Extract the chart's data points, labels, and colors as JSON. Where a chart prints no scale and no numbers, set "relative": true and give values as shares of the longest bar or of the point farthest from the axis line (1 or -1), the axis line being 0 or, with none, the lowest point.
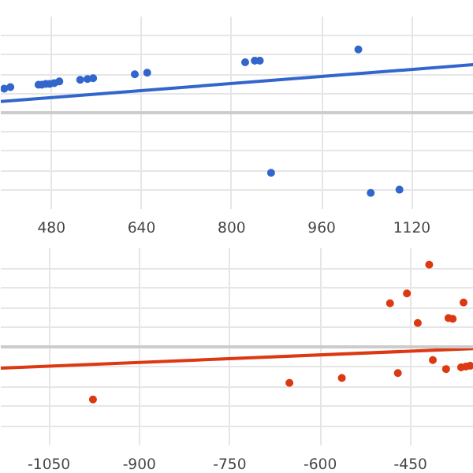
{
  "chart_data": [
    {
      "type": "scatter",
      "relative": true,
      "grid": true,
      "xlim": [
        390,
        1230
      ],
      "xticks": [
        480,
        640,
        800,
        960,
        1120
      ],
      "series": [
        {
          "color": "#3366cc",
          "marker": "circle",
          "x": [
            396,
            407,
            457,
            463,
            470,
            477,
            485,
            494,
            531,
            544,
            554,
            628,
            650,
            824,
            841,
            850,
            870,
            1025,
            1047,
            1098
          ],
          "values": [
            0.3,
            0.32,
            0.35,
            0.35,
            0.36,
            0.36,
            0.37,
            0.39,
            0.41,
            0.42,
            0.43,
            0.48,
            0.5,
            0.63,
            0.65,
            0.65,
            -0.75,
            0.79,
            -1,
            -0.96
          ]
        },
        {
          "type": "line",
          "color": "#3366cc",
          "x": [
            390,
            1230
          ],
          "values": [
            0.14,
            0.6
          ]
        }
      ]
    },
    {
      "type": "scatter",
      "relative": true,
      "grid": true,
      "xlim": [
        -1130,
        -345
      ],
      "xticks": [
        -1050,
        -900,
        -750,
        -600,
        -450
      ],
      "series": [
        {
          "color": "#dc3912",
          "marker": "circle",
          "x": [
            -977,
            -651,
            -564,
            -484,
            -471,
            -456,
            -438,
            -419,
            -413,
            -391,
            -387,
            -380,
            -366,
            -362,
            -358,
            -351
          ],
          "values": [
            -0.64,
            -0.44,
            -0.38,
            0.53,
            -0.32,
            0.65,
            0.29,
            1,
            -0.16,
            -0.27,
            0.35,
            0.34,
            -0.25,
            0.54,
            -0.24,
            -0.23
          ]
        },
        {
          "type": "line",
          "color": "#dc3912",
          "x": [
            -1130,
            -345
          ],
          "values": [
            -0.26,
            -0.02
          ]
        }
      ]
    }
  ]
}
